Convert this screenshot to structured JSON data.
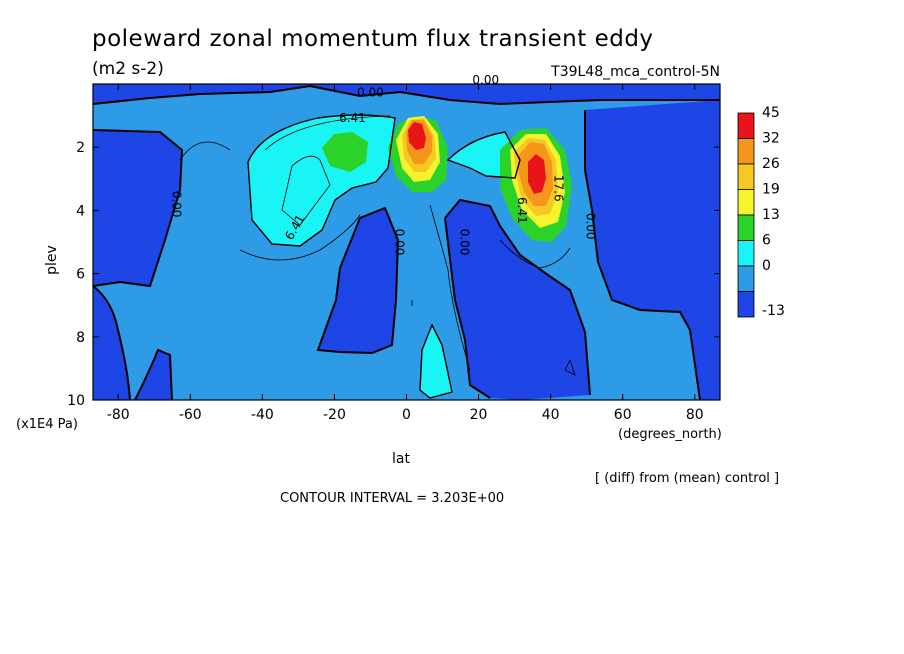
{
  "chart_data": {
    "type": "heatmap",
    "title": "poleward zonal momentum flux transient eddy",
    "units": "(m2 s-2)",
    "run_label": "T39L48_mca_control-5N",
    "xlabel": "lat",
    "xunits": "(degrees_north)",
    "ylabel": "plev",
    "yunits": "(x1E4 Pa)",
    "xlim": [
      -87,
      87
    ],
    "ylim": [
      0,
      10
    ],
    "y_inverted": true,
    "x_ticks": [
      "-80",
      "-60",
      "-40",
      "-20",
      "0",
      "20",
      "40",
      "60",
      "80"
    ],
    "x_tick_values": [
      -80,
      -60,
      -40,
      -20,
      0,
      20,
      40,
      60,
      80
    ],
    "y_ticks": [
      "2",
      "4",
      "6",
      "8",
      "10"
    ],
    "y_tick_values": [
      2,
      4,
      6,
      8,
      10
    ],
    "colorbar": {
      "labels": [
        "45",
        "32",
        "26",
        "19",
        "13",
        "6",
        "0",
        "-13"
      ],
      "colors": [
        "#e8141a",
        "#f5961a",
        "#f5c823",
        "#f5f52d",
        "#2ad22a",
        "#19f5f5",
        "#2d9be6",
        "#1e46e6"
      ]
    },
    "contour_labels": [
      {
        "text": "0.00",
        "lat": 22,
        "plev": 0.0
      },
      {
        "text": "0.00",
        "lat": -10,
        "plev": 0.4
      },
      {
        "text": "6.41",
        "lat": -15,
        "plev": 1.2
      },
      {
        "text": "0.00",
        "lat": -65,
        "plev": 3.8
      },
      {
        "text": "6.41",
        "lat": -30,
        "plev": 4.6
      },
      {
        "text": "0.00",
        "lat": -3,
        "plev": 5.0
      },
      {
        "text": "0.00",
        "lat": 15,
        "plev": 5.0
      },
      {
        "text": "6.41",
        "lat": 31,
        "plev": 4.0
      },
      {
        "text": "0.00",
        "lat": 50,
        "plev": 4.5
      },
      {
        "text": "17.6",
        "lat": 41,
        "plev": 3.3
      }
    ],
    "features": [
      {
        "name": "max-near-equator",
        "lat": 3,
        "plev": 1.8,
        "value_range": "32-45"
      },
      {
        "name": "max-subtropics-north",
        "lat": 37,
        "plev": 3.0,
        "value_range": "32-45"
      },
      {
        "name": "secondary-max-south",
        "lat": -18,
        "plev": 2.0,
        "value_range": "13-19"
      },
      {
        "name": "small-max-low-level",
        "lat": 8,
        "plev": 9.2,
        "value_range": "6-13"
      }
    ],
    "contour_interval_text": "CONTOUR INTERVAL = 3.203E+00",
    "footer_note": "[ (diff) from (mean) control ]"
  }
}
